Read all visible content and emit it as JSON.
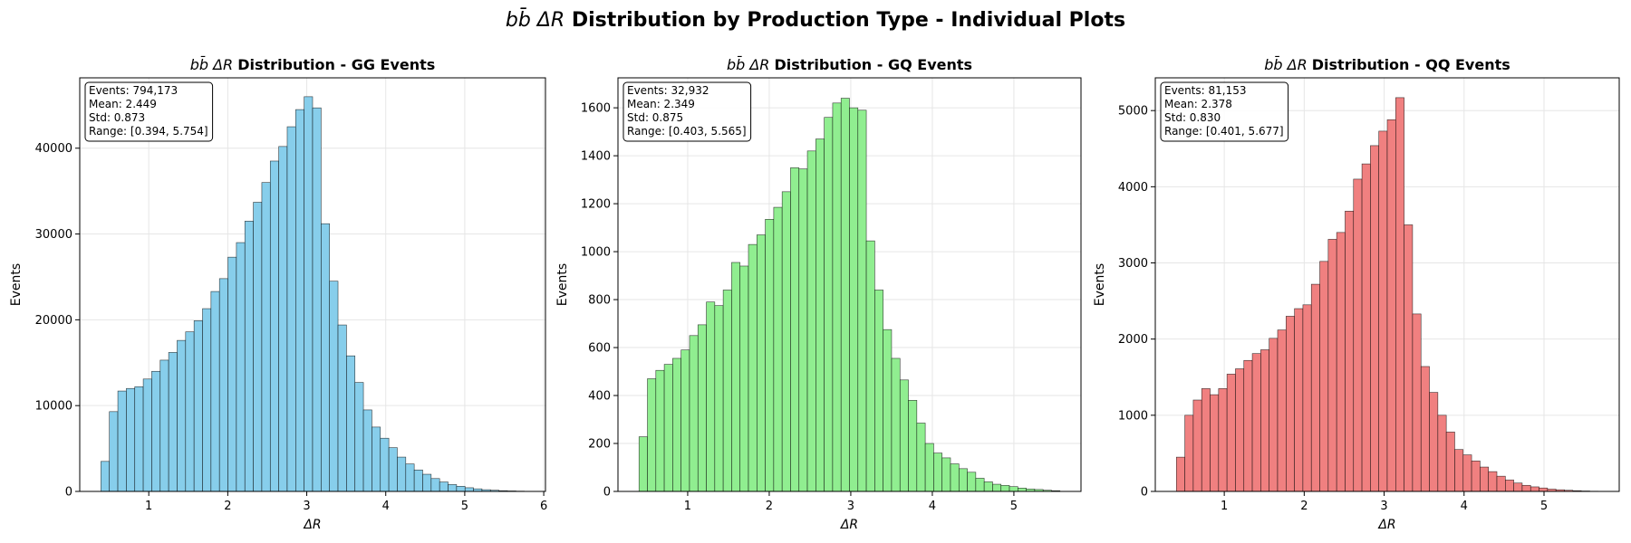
{
  "figure": {
    "title_math": "bb̄ ΔR",
    "title_rest": "Distribution by Production Type - Individual Plots"
  },
  "chart_data": [
    {
      "type": "bar",
      "title_math": "bb̄ ΔR",
      "title_rest": "Distribution - GG Events",
      "xlabel": "ΔR",
      "ylabel": "Events",
      "xlim": [
        0.126,
        6.022
      ],
      "ylim": [
        0,
        48200
      ],
      "xticks": [
        1,
        2,
        3,
        4,
        5,
        6
      ],
      "yticks": [
        0,
        10000,
        20000,
        30000,
        40000
      ],
      "color": "#87ceeb",
      "grid": true,
      "bin_start": 0.394,
      "bin_width": 0.1072,
      "values": [
        3500,
        9300,
        11700,
        12000,
        12200,
        13100,
        14000,
        15300,
        16200,
        17600,
        18600,
        19900,
        21300,
        23300,
        24800,
        27300,
        29000,
        31500,
        33700,
        36000,
        38500,
        40200,
        42500,
        44500,
        46000,
        44700,
        31200,
        24500,
        19400,
        15800,
        12700,
        9500,
        7500,
        6200,
        5100,
        4000,
        3200,
        2500,
        2000,
        1500,
        1100,
        800,
        600,
        430,
        300,
        200,
        140,
        90,
        60,
        35
      ],
      "stats": [
        "Events: 794,173",
        "Mean: 2.449",
        "Std: 0.873",
        "Range: [0.394, 5.754]"
      ]
    },
    {
      "type": "bar",
      "title_math": "bb̄ ΔR",
      "title_rest": "Distribution - GQ Events",
      "xlabel": "ΔR",
      "ylabel": "Events",
      "xlim": [
        0.145,
        5.823
      ],
      "ylim": [
        0,
        1725
      ],
      "xticks": [
        1,
        2,
        3,
        4,
        5
      ],
      "yticks": [
        0,
        200,
        400,
        600,
        800,
        1000,
        1200,
        1400,
        1600
      ],
      "color": "#90ee90",
      "grid": true,
      "bin_start": 0.403,
      "bin_width": 0.10324,
      "values": [
        228,
        470,
        505,
        530,
        555,
        590,
        650,
        695,
        790,
        775,
        840,
        955,
        940,
        1030,
        1070,
        1135,
        1185,
        1250,
        1350,
        1345,
        1420,
        1470,
        1560,
        1620,
        1640,
        1600,
        1590,
        1045,
        840,
        675,
        555,
        465,
        380,
        285,
        200,
        160,
        140,
        115,
        95,
        80,
        55,
        40,
        30,
        25,
        20,
        14,
        10,
        8,
        5,
        3
      ],
      "stats": [
        "Events: 32,932",
        "Mean: 2.349",
        "Std: 0.875",
        "Range: [0.403, 5.565]"
      ]
    },
    {
      "type": "bar",
      "title_math": "bb̄ ΔR",
      "title_rest": "Distribution - QQ Events",
      "xlabel": "ΔR",
      "ylabel": "Events",
      "xlim": [
        0.137,
        5.941
      ],
      "ylim": [
        0,
        5430
      ],
      "xticks": [
        1,
        2,
        3,
        4,
        5
      ],
      "yticks": [
        0,
        1000,
        2000,
        3000,
        4000,
        5000
      ],
      "color": "#f08080",
      "grid": true,
      "bin_start": 0.401,
      "bin_width": 0.10552,
      "values": [
        450,
        1000,
        1200,
        1350,
        1270,
        1350,
        1540,
        1610,
        1720,
        1810,
        1860,
        2010,
        2120,
        2300,
        2400,
        2450,
        2720,
        3020,
        3310,
        3400,
        3680,
        4100,
        4300,
        4540,
        4730,
        4880,
        5170,
        3500,
        2330,
        1640,
        1300,
        1000,
        780,
        550,
        480,
        400,
        320,
        260,
        200,
        150,
        110,
        80,
        60,
        45,
        30,
        22,
        15,
        10,
        6,
        3
      ],
      "stats": [
        "Events: 81,153",
        "Mean: 2.378",
        "Std: 0.830",
        "Range: [0.401, 5.677]"
      ]
    }
  ]
}
